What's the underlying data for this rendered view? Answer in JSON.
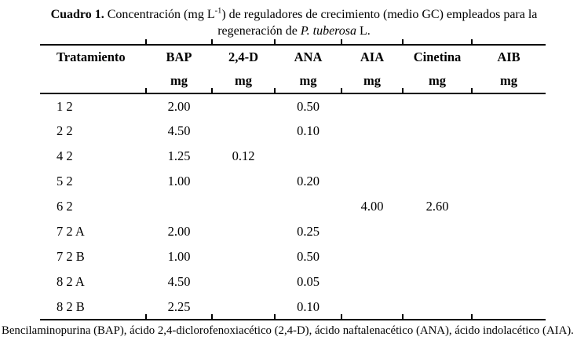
{
  "caption": {
    "label": "Cuadro 1.",
    "part1": " Concentración (mg L",
    "sup": "-1",
    "part2": ") de reguladores de crecimiento (medio GC) empleados para la",
    "line2_pre": "regeneración de ",
    "species": "P. tuberosa",
    "line2_post": " L."
  },
  "table": {
    "columns": [
      "Tratamiento",
      "BAP",
      "2,4-D",
      "ANA",
      "AIA",
      "Cinetina",
      "AIB"
    ],
    "units_row": [
      "",
      "mg",
      "mg",
      "mg",
      "mg",
      "mg",
      "mg"
    ],
    "rows": [
      [
        "1 2",
        "2.00",
        "",
        "0.50",
        "",
        "",
        ""
      ],
      [
        "2 2",
        "4.50",
        "",
        "0.10",
        "",
        "",
        ""
      ],
      [
        "4 2",
        "1.25",
        "0.12",
        "",
        "",
        "",
        ""
      ],
      [
        "5 2",
        "1.00",
        "",
        "0.20",
        "",
        "",
        ""
      ],
      [
        "6 2",
        "",
        "",
        "",
        "4.00",
        "2.60",
        ""
      ],
      [
        "7 2 A",
        "2.00",
        "",
        "0.25",
        "",
        "",
        ""
      ],
      [
        "7 2 B",
        "1.00",
        "",
        "0.50",
        "",
        "",
        ""
      ],
      [
        "8 2 A",
        "4.50",
        "",
        "0.05",
        "",
        "",
        ""
      ],
      [
        "8 2 B",
        "2.25",
        "",
        "0.10",
        "",
        "",
        ""
      ]
    ]
  },
  "footnote": "Bencilaminopurina (BAP), ácido 2,4-diclorofenoxiacético (2,4-D), ácido naftalenacético (ANA), ácido indolacético (AIA)."
}
